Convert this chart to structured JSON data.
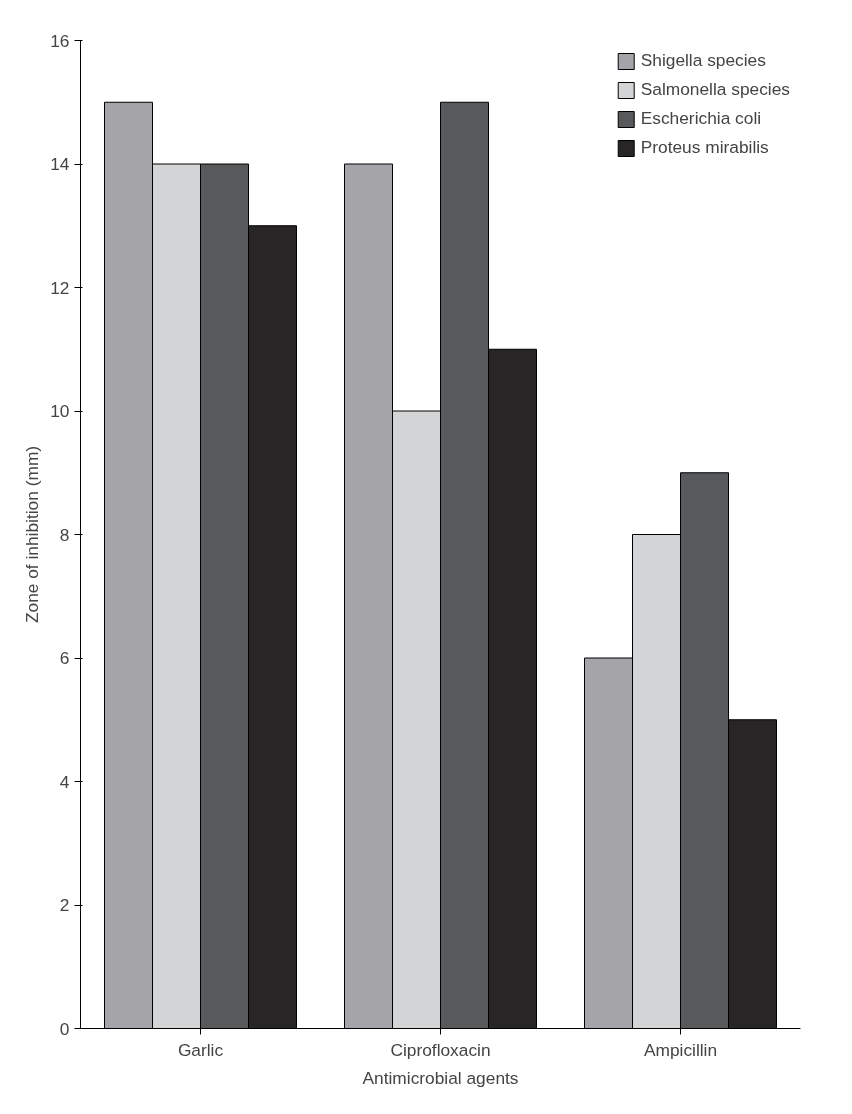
{
  "chart_data": {
    "type": "bar",
    "xlabel": "Antimicrobial agents",
    "ylabel": "Zone of inhibition (mm)",
    "categories": [
      "Garlic",
      "Ciprofloxacin",
      "Ampicillin"
    ],
    "series": [
      {
        "name": "Shigella species",
        "color": "#a5a5a9",
        "values": [
          15,
          14,
          6
        ]
      },
      {
        "name": "Salmonella species",
        "color": "#d3d4d6",
        "values": [
          14,
          10,
          8
        ]
      },
      {
        "name": "Escherichia coli",
        "color": "#58595b",
        "values": [
          14,
          15,
          9
        ]
      },
      {
        "name": "Proteus mirabilis",
        "color": "#282526",
        "values": [
          13,
          11,
          5
        ]
      }
    ],
    "ylim": [
      0,
      16
    ],
    "yticks": [
      0,
      2,
      4,
      6,
      8,
      10,
      12,
      14,
      16
    ],
    "grid": false,
    "legend": "top right"
  }
}
